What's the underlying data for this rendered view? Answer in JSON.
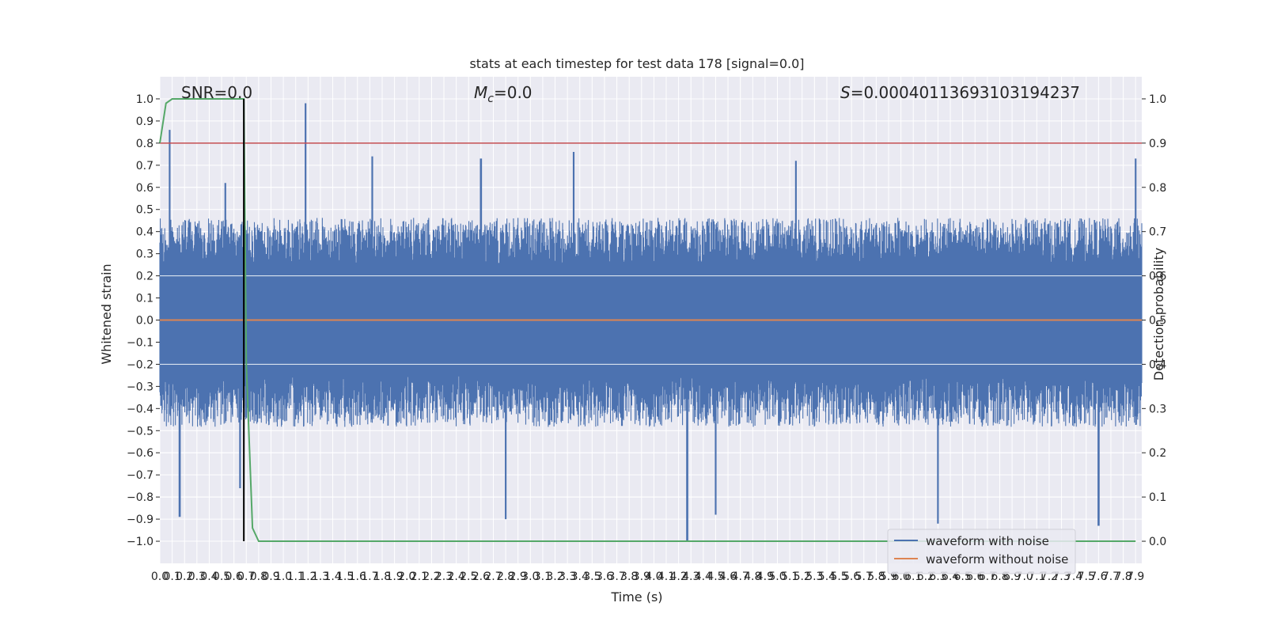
{
  "chart_data": {
    "type": "line",
    "title": "stats at each timestep for test data 178 [signal=0.0]",
    "xlabel": "Time (s)",
    "ylabel": "Whitened strain",
    "y2label": "Detection probability",
    "xlim": [
      0.0,
      7.95
    ],
    "ylim": [
      -1.1,
      1.1
    ],
    "y2lim": [
      -0.05,
      1.05
    ],
    "grid": true,
    "legend_position": "lower-right",
    "x_ticks": [
      "0.0",
      "0.1",
      "0.2",
      "0.3",
      "0.4",
      "0.5",
      "0.6",
      "0.7",
      "0.8",
      "0.9",
      "1.0",
      "1.1",
      "1.2",
      "1.3",
      "1.4",
      "1.5",
      "1.6",
      "1.7",
      "1.8",
      "1.9",
      "2.0",
      "2.1",
      "2.2",
      "2.3",
      "2.4",
      "2.5",
      "2.6",
      "2.7",
      "2.8",
      "2.9",
      "3.0",
      "3.1",
      "3.2",
      "3.3",
      "3.4",
      "3.5",
      "3.6",
      "3.7",
      "3.8",
      "3.9",
      "4.0",
      "4.1",
      "4.2",
      "4.3",
      "4.4",
      "4.5",
      "4.6",
      "4.7",
      "4.8",
      "4.9",
      "5.0",
      "5.1",
      "5.2",
      "5.3",
      "5.4",
      "5.5",
      "5.6",
      "5.7",
      "5.8",
      "5.9",
      "6.0",
      "6.1",
      "6.2",
      "6.3",
      "6.4",
      "6.5",
      "6.6",
      "6.7",
      "6.8",
      "6.9",
      "7.0",
      "7.1",
      "7.2",
      "7.3",
      "7.4",
      "7.5",
      "7.6",
      "7.7",
      "7.8",
      "7.9"
    ],
    "y_ticks": [
      "1.0",
      "0.9",
      "0.8",
      "0.7",
      "0.6",
      "0.5",
      "0.4",
      "0.3",
      "0.2",
      "0.1",
      "0.0",
      "−0.1",
      "−0.2",
      "−0.3",
      "−0.4",
      "−0.5",
      "−0.6",
      "−0.7",
      "−0.8",
      "−0.9",
      "−1.0"
    ],
    "y_tick_values": [
      1.0,
      0.9,
      0.8,
      0.7,
      0.6,
      0.5,
      0.4,
      0.3,
      0.2,
      0.1,
      0.0,
      -0.1,
      -0.2,
      -0.3,
      -0.4,
      -0.5,
      -0.6,
      -0.7,
      -0.8,
      -0.9,
      -1.0
    ],
    "y2_ticks": [
      "1.0",
      "0.9",
      "0.8",
      "0.7",
      "0.6",
      "0.5",
      "0.4",
      "0.3",
      "0.2",
      "0.1",
      "0.0"
    ],
    "y2_tick_values": [
      1.0,
      0.9,
      0.8,
      0.7,
      0.6,
      0.5,
      0.4,
      0.3,
      0.2,
      0.1,
      0.0
    ],
    "annotations": {
      "snr": "SNR=0.0",
      "mc_symbol": "M",
      "mc_sub": "c",
      "mc_value": "=0.0",
      "s_symbol": "S",
      "s_value": "=0.00040113693103194237"
    },
    "series": [
      {
        "name": "waveform with noise",
        "color": "#4c72b0",
        "description_values": "dense noise, envelope mostly within ±0.5, peaks approx below",
        "peaks": [
          [
            0.08,
            0.86
          ],
          [
            0.16,
            -0.89
          ],
          [
            0.53,
            0.62
          ],
          [
            0.65,
            -0.76
          ],
          [
            1.18,
            0.98
          ],
          [
            1.72,
            0.74
          ],
          [
            2.6,
            0.73
          ],
          [
            2.8,
            -0.9
          ],
          [
            3.35,
            0.76
          ],
          [
            4.27,
            -1.0
          ],
          [
            4.5,
            -0.88
          ],
          [
            5.15,
            0.72
          ],
          [
            6.3,
            -0.92
          ],
          [
            7.6,
            -0.93
          ],
          [
            7.9,
            0.73
          ]
        ],
        "base_amplitude": 0.42
      },
      {
        "name": "waveform without noise",
        "color": "#dd8452",
        "x": [
          0.0,
          7.95
        ],
        "y": [
          0.0,
          0.0
        ]
      },
      {
        "name": "",
        "color": "#55a868",
        "axis": "right",
        "x": [
          0.0,
          0.05,
          0.1,
          0.15,
          0.2,
          0.25,
          0.3,
          0.35,
          0.4,
          0.45,
          0.5,
          0.55,
          0.6,
          0.65,
          0.68,
          0.7,
          0.75,
          0.8,
          1.0,
          2.0,
          3.0,
          4.0,
          5.0,
          6.0,
          7.0,
          7.9
        ],
        "y": [
          0.9,
          0.99,
          1.0,
          1.0,
          1.0,
          1.0,
          1.0,
          1.0,
          1.0,
          1.0,
          1.0,
          1.0,
          1.0,
          1.0,
          1.0,
          0.4,
          0.03,
          0.0,
          0.0,
          0.0,
          0.0,
          0.0,
          0.0,
          0.0,
          0.0,
          0.0
        ]
      }
    ],
    "hlines": [
      {
        "y2": 0.9,
        "color": "#c44e52"
      }
    ],
    "vlines": [
      {
        "x": 0.68,
        "y_from": -1.0,
        "y_to": 1.0,
        "color": "#000000"
      }
    ],
    "colors": {
      "axes_bg": "#eaeaf2",
      "grid": "#ffffff",
      "noise": "#4c72b0",
      "clean": "#dd8452",
      "prob": "#55a868",
      "threshold": "#c44e52",
      "marker": "#000000"
    }
  }
}
